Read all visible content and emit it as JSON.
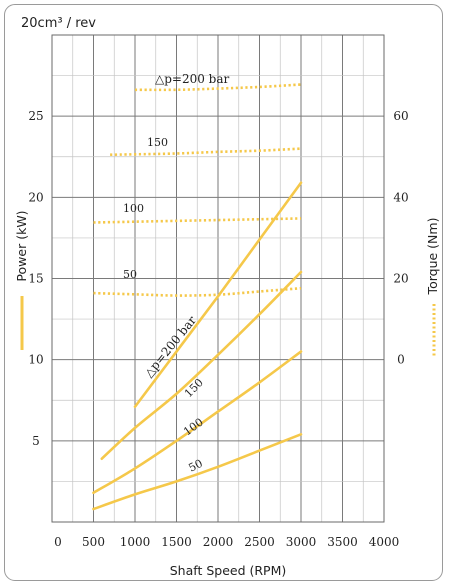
{
  "chart_data": {
    "type": "line",
    "unit_label": "20cm³ / rev",
    "xlabel": "Shaft Speed (RPM)",
    "ylabel_left": "Power (kW)",
    "ylabel_right": "Torque (Nm)",
    "xlim": [
      0,
      4000
    ],
    "ylim_power": [
      0,
      30
    ],
    "torque_axis": {
      "ticks": [
        0,
        20,
        40,
        60
      ],
      "zero_at_power": 10,
      "power_per_nm": 0.25
    },
    "x_ticks": [
      0,
      500,
      1000,
      1500,
      2000,
      2500,
      3000,
      3500,
      4000
    ],
    "x_tick_labels": [
      "0",
      "500",
      "1000",
      "1500",
      "2000",
      "2500",
      "3000",
      "3500",
      "4000"
    ],
    "y_ticks_power": [
      5,
      10,
      15,
      20,
      25
    ],
    "y_tick_labels_power": [
      "5",
      "10",
      "15",
      "20",
      "25"
    ],
    "y_tick_labels_torque": [
      "0",
      "20",
      "40",
      "60"
    ],
    "grid": true,
    "power_color": "#f5c84a",
    "torque_color": "#f5c84a",
    "power_series": [
      {
        "label": "△p=200 bar",
        "x": [
          1000,
          1500,
          2000,
          2500,
          3000
        ],
        "y": [
          7.1,
          10.5,
          13.9,
          17.4,
          20.9
        ]
      },
      {
        "label": "150",
        "x": [
          600,
          1000,
          1500,
          2000,
          2500,
          3000
        ],
        "y": [
          3.9,
          5.8,
          7.9,
          10.3,
          12.8,
          15.4
        ]
      },
      {
        "label": "100",
        "x": [
          500,
          1000,
          1500,
          2000,
          2500,
          3000
        ],
        "y": [
          1.8,
          3.3,
          5.0,
          6.8,
          8.6,
          10.5
        ]
      },
      {
        "label": "50",
        "x": [
          500,
          1000,
          1500,
          2000,
          2500,
          3000
        ],
        "y": [
          0.8,
          1.7,
          2.5,
          3.4,
          4.4,
          5.4
        ]
      }
    ],
    "torque_series": [
      {
        "label": "△p=200 bar",
        "x": [
          1000,
          1500,
          2000,
          2500,
          3000
        ],
        "y": [
          66.5,
          66.5,
          66.8,
          67.2,
          67.8
        ]
      },
      {
        "label": "150",
        "x": [
          700,
          1000,
          1500,
          2000,
          2500,
          3000
        ],
        "y": [
          50.5,
          50.6,
          50.8,
          51.2,
          51.5,
          52
        ]
      },
      {
        "label": "100",
        "x": [
          500,
          1000,
          1500,
          2000,
          2500,
          3000
        ],
        "y": [
          33.8,
          34,
          34.2,
          34.4,
          34.6,
          34.8
        ]
      },
      {
        "label": "50",
        "x": [
          500,
          1000,
          1500,
          2000,
          2500,
          3000
        ],
        "y": [
          16.4,
          16.1,
          15.8,
          16.0,
          16.8,
          17.6
        ]
      }
    ]
  }
}
